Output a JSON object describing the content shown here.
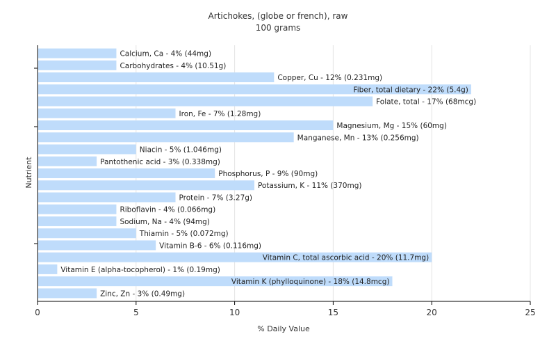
{
  "chart_data": {
    "type": "bar",
    "orientation": "horizontal",
    "title": "Artichokes, (globe or french), raw",
    "subtitle": "100 grams",
    "xlabel": "% Daily Value",
    "ylabel": "Nutrient",
    "xlim": [
      0,
      25
    ],
    "xticks": [
      0,
      5,
      10,
      15,
      20,
      25
    ],
    "grid": true,
    "bar_color": "#bfdcfb",
    "categories": [
      "Calcium, Ca - 4% (44mg)",
      "Carbohydrates - 4% (10.51g)",
      "Copper, Cu - 12% (0.231mg)",
      "Fiber, total dietary - 22% (5.4g)",
      "Folate, total - 17% (68mcg)",
      "Iron, Fe - 7% (1.28mg)",
      "Magnesium, Mg - 15% (60mg)",
      "Manganese, Mn - 13% (0.256mg)",
      "Niacin - 5% (1.046mg)",
      "Pantothenic acid - 3% (0.338mg)",
      "Phosphorus, P - 9% (90mg)",
      "Potassium, K - 11% (370mg)",
      "Protein - 7% (3.27g)",
      "Riboflavin - 4% (0.066mg)",
      "Sodium, Na - 4% (94mg)",
      "Thiamin - 5% (0.072mg)",
      "Vitamin B-6 - 6% (0.116mg)",
      "Vitamin C, total ascorbic acid - 20% (11.7mg)",
      "Vitamin E (alpha-tocopherol) - 1% (0.19mg)",
      "Vitamin K (phylloquinone) - 18% (14.8mcg)",
      "Zinc, Zn - 3% (0.49mg)"
    ],
    "values": [
      4,
      4,
      12,
      22,
      17,
      7,
      15,
      13,
      5,
      3,
      9,
      11,
      7,
      4,
      4,
      5,
      6,
      20,
      1,
      18,
      3
    ]
  }
}
